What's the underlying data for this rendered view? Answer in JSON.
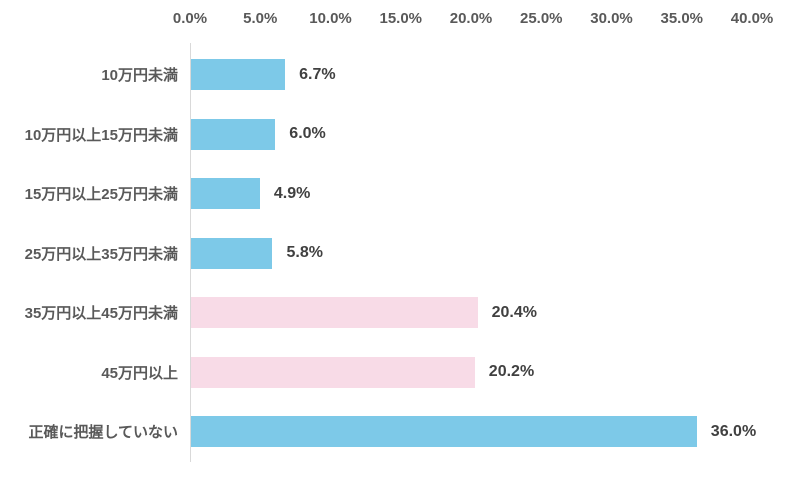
{
  "chart_data": {
    "type": "bar",
    "orientation": "horizontal",
    "title": "",
    "categories": [
      "10万円未満",
      "10万円以上15万円未満",
      "15万円以上25万円未満",
      "25万円以上35万円未満",
      "35万円以上45万円未満",
      "45万円以上",
      "正確に把握していない"
    ],
    "values": [
      6.7,
      6.0,
      4.9,
      5.8,
      20.4,
      20.2,
      36.0
    ],
    "value_labels": [
      "6.7%",
      "6.0%",
      "4.9%",
      "5.8%",
      "20.4%",
      "20.2%",
      "36.0%"
    ],
    "bar_colors": [
      "#7dc9e8",
      "#7dc9e8",
      "#7dc9e8",
      "#7dc9e8",
      "#f8dbe7",
      "#f8dbe7",
      "#7dc9e8"
    ],
    "x_ticks": [
      "0.0%",
      "5.0%",
      "10.0%",
      "15.0%",
      "20.0%",
      "25.0%",
      "30.0%",
      "35.0%",
      "40.0%"
    ],
    "x_tick_values": [
      0,
      5,
      10,
      15,
      20,
      25,
      30,
      35,
      40
    ],
    "xlim": [
      0,
      40
    ],
    "grid": false,
    "legend": false
  },
  "colors": {
    "bar_blue": "#7dc9e8",
    "bar_pink": "#f8dbe7",
    "axis_line": "#d9d9d9",
    "tick_text": "#595959",
    "category_text": "#595959",
    "value_text": "#404040",
    "background": "#ffffff"
  }
}
